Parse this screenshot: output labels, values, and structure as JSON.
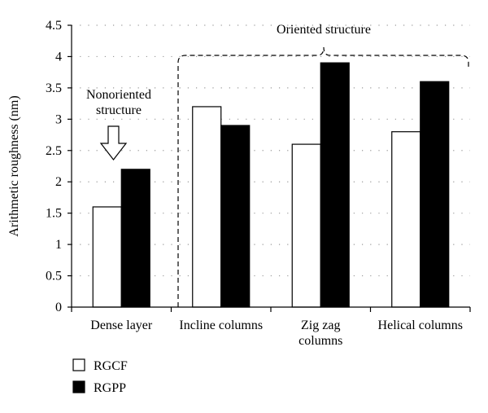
{
  "chart_data": {
    "type": "bar",
    "ylabel": "Arithmetic roughness (nm)",
    "ylim": [
      0,
      4.5
    ],
    "yticks": [
      "0",
      "0.5",
      "1",
      "1.5",
      "2",
      "2.5",
      "3",
      "3.5",
      "4",
      "4.5"
    ],
    "grid": true,
    "categories": [
      [
        "Dense layer"
      ],
      [
        "Incline columns"
      ],
      [
        "Zig zag",
        "columns"
      ],
      [
        "Helical columns"
      ]
    ],
    "series": [
      {
        "name": "RGCF",
        "color": "#ffffff",
        "values": [
          1.6,
          3.2,
          2.6,
          2.8
        ]
      },
      {
        "name": "RGPP",
        "color": "#000000",
        "values": [
          2.2,
          2.9,
          3.9,
          3.6
        ]
      }
    ],
    "legend_position": "bottom-left",
    "annotations": {
      "nonoriented": [
        "Nonoriented",
        "structure"
      ],
      "oriented": "Oriented structure"
    }
  }
}
